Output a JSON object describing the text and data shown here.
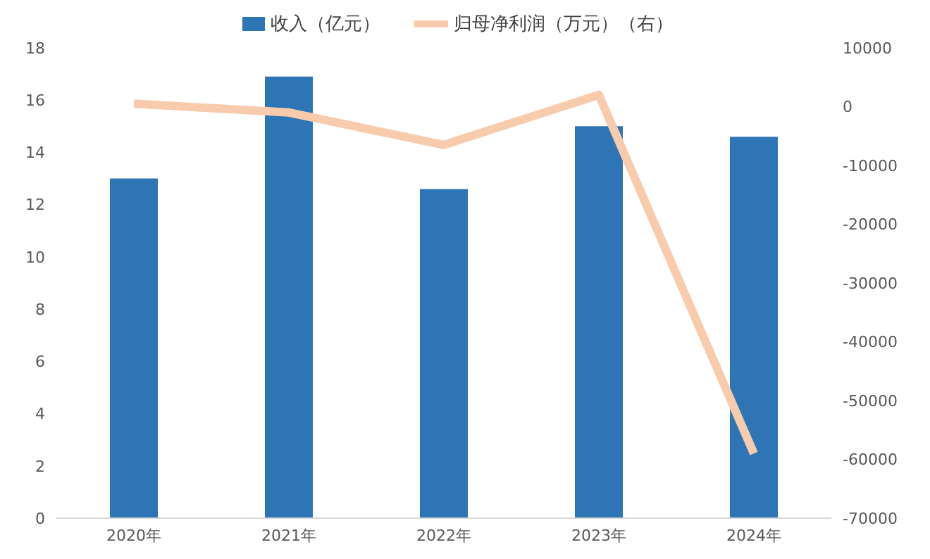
{
  "chart_data": {
    "type": "bar",
    "categories": [
      "2020年",
      "2021年",
      "2022年",
      "2023年",
      "2024年"
    ],
    "series": [
      {
        "name": "收入（亿元）",
        "color": "#2e75b6",
        "values": [
          13.0,
          16.9,
          12.6,
          15.0,
          14.6
        ]
      },
      {
        "name": "归母净利润（万元）（右）",
        "type": "line",
        "axis": "y2",
        "color": "#f8cbad",
        "values": [
          500,
          -1000,
          -6500,
          2000,
          -59000
        ]
      }
    ],
    "ylim": [
      0,
      18
    ],
    "yticks": [
      0,
      2,
      4,
      6,
      8,
      10,
      12,
      14,
      16,
      18
    ],
    "y2lim": [
      -70000,
      10000
    ],
    "y2ticks": [
      -70000,
      -60000,
      -50000,
      -40000,
      -30000,
      -20000,
      -10000,
      0,
      10000
    ],
    "legend": "top",
    "marker": "none",
    "line_style": "solid"
  }
}
